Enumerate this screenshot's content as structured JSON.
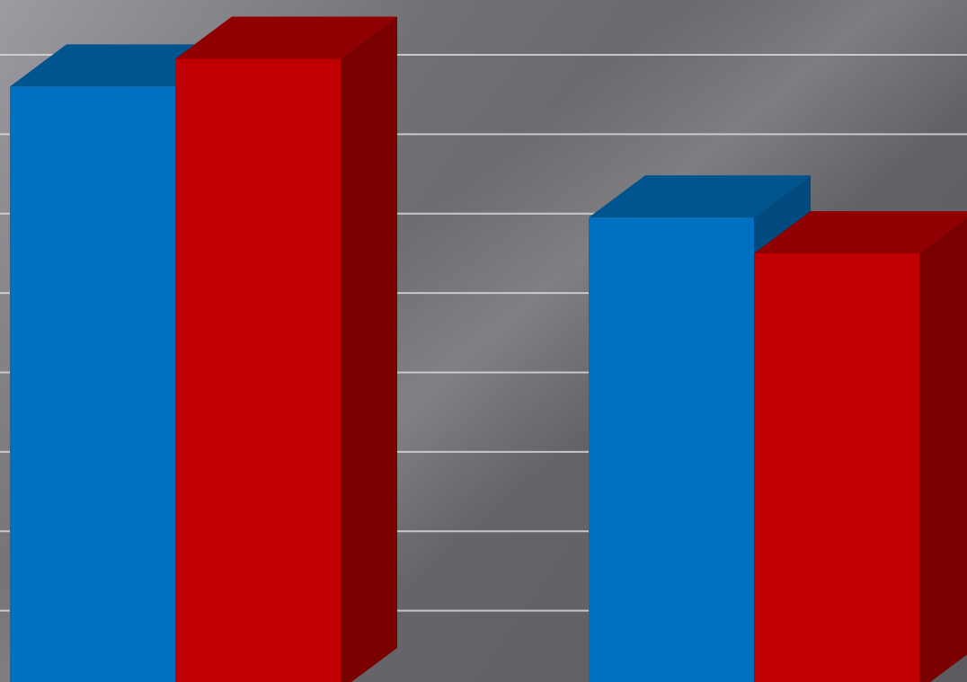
{
  "chart_data": {
    "type": "bar",
    "style": "3d-clustered-columns",
    "categories": [
      "",
      ""
    ],
    "series": [
      {
        "color": "#0070C0",
        "top_color": "#00558F",
        "side_color": "#004A80",
        "values": [
          7.6,
          5.95
        ]
      },
      {
        "color": "#C00000",
        "top_color": "#900000",
        "side_color": "#7A0000",
        "values": [
          7.95,
          5.5
        ]
      }
    ],
    "ylim": [
      0,
      8.6
    ],
    "grid": true,
    "legend": "none",
    "title": "",
    "xlabel": "",
    "ylabel": ""
  },
  "colors": {
    "background": "#6b6a6f",
    "gridline": "#d8d8d8"
  }
}
